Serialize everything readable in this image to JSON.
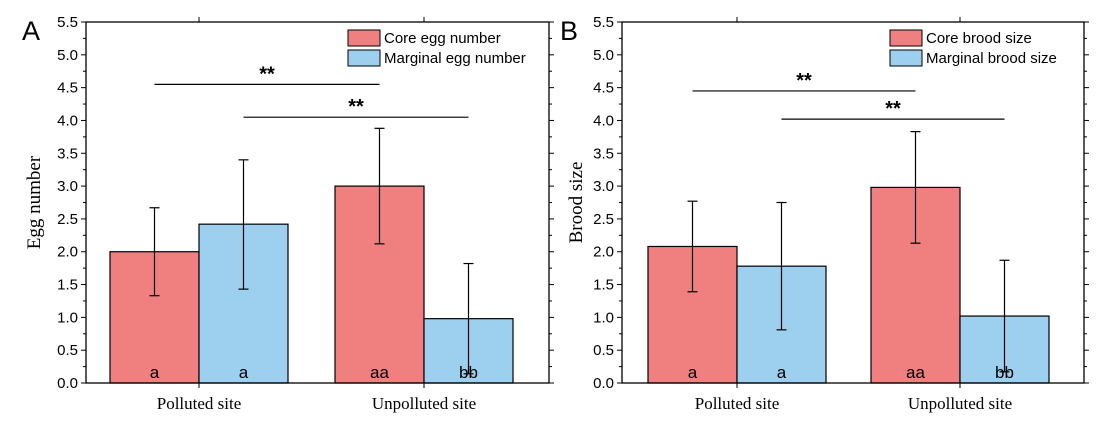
{
  "colors": {
    "core": "#f08080",
    "marginal": "#9dcfef",
    "stroke": "#000000"
  },
  "chart_data": [
    {
      "panel": "A",
      "type": "bar",
      "ylabel": "Egg number",
      "xlabel": "",
      "ylim": [
        0,
        5.5
      ],
      "yticks": [
        "0.0",
        "0.5",
        "1.0",
        "1.5",
        "2.0",
        "2.5",
        "3.0",
        "3.5",
        "4.0",
        "4.5",
        "5.0",
        "5.5"
      ],
      "categories": [
        "Polluted site",
        "Unpolluted site"
      ],
      "legend_position": "top-right",
      "series": [
        {
          "name": "Core egg number",
          "color_key": "core",
          "values": [
            2.0,
            3.0
          ],
          "err_low": [
            1.33,
            2.12
          ],
          "err_high": [
            2.67,
            3.88
          ],
          "letters": [
            "a",
            "aa"
          ]
        },
        {
          "name": "Marginal egg number",
          "color_key": "marginal",
          "values": [
            2.42,
            0.98
          ],
          "err_low": [
            1.43,
            0.14
          ],
          "err_high": [
            3.4,
            1.82
          ],
          "letters": [
            "a",
            "bb"
          ]
        }
      ],
      "significance": [
        {
          "label": "**",
          "level": 4.55,
          "from": [
            0,
            0
          ],
          "to": [
            1,
            0
          ]
        },
        {
          "label": "**",
          "level": 4.05,
          "from": [
            0,
            1
          ],
          "to": [
            1,
            1
          ]
        }
      ]
    },
    {
      "panel": "B",
      "type": "bar",
      "ylabel": "Brood size",
      "xlabel": "",
      "ylim": [
        0,
        5.5
      ],
      "yticks": [
        "0.0",
        "0.5",
        "1.0",
        "1.5",
        "2.0",
        "2.5",
        "3.0",
        "3.5",
        "4.0",
        "4.5",
        "5.0",
        "5.5"
      ],
      "categories": [
        "Polluted site",
        "Unpolluted site"
      ],
      "legend_position": "top-right",
      "series": [
        {
          "name": "Core brood size",
          "color_key": "core",
          "values": [
            2.08,
            2.98
          ],
          "err_low": [
            1.39,
            2.13
          ],
          "err_high": [
            2.77,
            3.83
          ],
          "letters": [
            "a",
            "aa"
          ]
        },
        {
          "name": "Marginal brood size",
          "color_key": "marginal",
          "values": [
            1.78,
            1.02
          ],
          "err_low": [
            0.81,
            0.17
          ],
          "err_high": [
            2.75,
            1.87
          ],
          "letters": [
            "a",
            "bb"
          ]
        }
      ],
      "significance": [
        {
          "label": "**",
          "level": 4.45,
          "from": [
            0,
            0
          ],
          "to": [
            1,
            0
          ]
        },
        {
          "label": "**",
          "level": 4.02,
          "from": [
            0,
            1
          ],
          "to": [
            1,
            1
          ]
        }
      ]
    }
  ]
}
